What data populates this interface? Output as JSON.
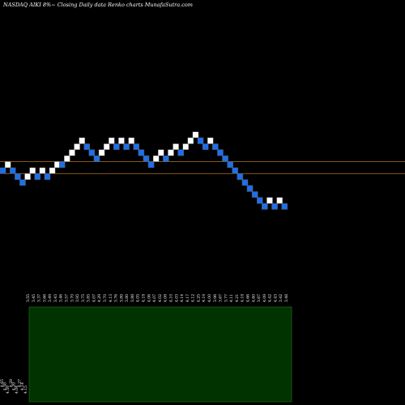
{
  "title": "NASDAQ AIKI 8%~  Closing Daily data  Renko  charts MunafaSutra.com",
  "colors": {
    "background": "#000000",
    "up_brick": "#ffffff",
    "down_brick": "#1e6fe8",
    "brick_border": "#5a5a5a",
    "reference_line": "#b8761e",
    "volume_panel": "#003300",
    "volume_border": "#1a7a1a",
    "label_text": "#ffffff"
  },
  "chart_data": [
    {
      "type": "renko",
      "name": "price",
      "brick_size_pct": 8,
      "y_range": [
        3.15,
        7.5
      ],
      "reference_lines": [
        5.62,
        5.07
      ],
      "bricks": [
        {
          "dir": "down",
          "low": 5.07,
          "high": 5.34
        },
        {
          "dir": "up",
          "low": 5.34,
          "high": 5.62
        },
        {
          "dir": "down",
          "low": 5.07,
          "high": 5.34
        },
        {
          "dir": "down",
          "low": 4.79,
          "high": 5.07
        },
        {
          "dir": "down",
          "low": 4.52,
          "high": 4.79
        },
        {
          "dir": "up",
          "low": 4.79,
          "high": 5.07
        },
        {
          "dir": "up",
          "low": 5.07,
          "high": 5.34
        },
        {
          "dir": "down",
          "low": 4.79,
          "high": 5.07
        },
        {
          "dir": "up",
          "low": 5.07,
          "high": 5.34
        },
        {
          "dir": "down",
          "low": 4.79,
          "high": 5.07
        },
        {
          "dir": "up",
          "low": 5.07,
          "high": 5.34
        },
        {
          "dir": "up",
          "low": 5.34,
          "high": 5.62
        },
        {
          "dir": "down",
          "low": 5.34,
          "high": 5.62
        },
        {
          "dir": "up",
          "low": 5.62,
          "high": 5.89
        },
        {
          "dir": "up",
          "low": 5.89,
          "high": 6.17
        },
        {
          "dir": "up",
          "low": 6.17,
          "high": 6.44
        },
        {
          "dir": "up",
          "low": 6.44,
          "high": 6.72
        },
        {
          "dir": "down",
          "low": 6.17,
          "high": 6.44
        },
        {
          "dir": "down",
          "low": 5.89,
          "high": 6.17
        },
        {
          "dir": "down",
          "low": 5.62,
          "high": 5.89
        },
        {
          "dir": "up",
          "low": 5.89,
          "high": 6.17
        },
        {
          "dir": "up",
          "low": 6.17,
          "high": 6.44
        },
        {
          "dir": "up",
          "low": 6.44,
          "high": 6.72
        },
        {
          "dir": "down",
          "low": 6.17,
          "high": 6.44
        },
        {
          "dir": "up",
          "low": 6.44,
          "high": 6.72
        },
        {
          "dir": "down",
          "low": 6.17,
          "high": 6.44
        },
        {
          "dir": "up",
          "low": 6.44,
          "high": 6.72
        },
        {
          "dir": "down",
          "low": 6.17,
          "high": 6.44
        },
        {
          "dir": "down",
          "low": 5.89,
          "high": 6.17
        },
        {
          "dir": "down",
          "low": 5.62,
          "high": 5.89
        },
        {
          "dir": "down",
          "low": 5.34,
          "high": 5.62
        },
        {
          "dir": "up",
          "low": 5.62,
          "high": 5.89
        },
        {
          "dir": "up",
          "low": 5.89,
          "high": 6.17
        },
        {
          "dir": "down",
          "low": 5.62,
          "high": 5.89
        },
        {
          "dir": "up",
          "low": 5.89,
          "high": 6.17
        },
        {
          "dir": "up",
          "low": 6.17,
          "high": 6.44
        },
        {
          "dir": "down",
          "low": 5.89,
          "high": 6.17
        },
        {
          "dir": "up",
          "low": 6.17,
          "high": 6.44
        },
        {
          "dir": "up",
          "low": 6.44,
          "high": 6.72
        },
        {
          "dir": "up",
          "low": 6.72,
          "high": 6.99
        },
        {
          "dir": "down",
          "low": 6.44,
          "high": 6.72
        },
        {
          "dir": "down",
          "low": 6.17,
          "high": 6.44
        },
        {
          "dir": "up",
          "low": 6.44,
          "high": 6.72
        },
        {
          "dir": "down",
          "low": 6.17,
          "high": 6.44
        },
        {
          "dir": "down",
          "low": 5.89,
          "high": 6.17
        },
        {
          "dir": "down",
          "low": 5.62,
          "high": 5.89
        },
        {
          "dir": "down",
          "low": 5.34,
          "high": 5.62
        },
        {
          "dir": "down",
          "low": 5.07,
          "high": 5.34
        },
        {
          "dir": "down",
          "low": 4.79,
          "high": 5.07
        },
        {
          "dir": "down",
          "low": 4.52,
          "high": 4.79
        },
        {
          "dir": "down",
          "low": 4.24,
          "high": 4.52
        },
        {
          "dir": "down",
          "low": 3.97,
          "high": 4.24
        },
        {
          "dir": "down",
          "low": 3.69,
          "high": 3.97
        },
        {
          "dir": "down",
          "low": 3.42,
          "high": 3.69
        },
        {
          "dir": "up",
          "low": 3.69,
          "high": 3.97
        },
        {
          "dir": "down",
          "low": 3.42,
          "high": 3.69
        },
        {
          "dir": "up",
          "low": 3.69,
          "high": 3.97
        },
        {
          "dir": "down",
          "low": 3.42,
          "high": 3.69
        }
      ],
      "date_labels": [
        "3.55",
        "3.45",
        "3.37",
        "3.66",
        "3.49",
        "3.43",
        "3.46",
        "3.57",
        "3.70",
        "3.95",
        "3.75",
        "3.85",
        "4.07",
        "4.29",
        "3.70",
        "4.13",
        "3.76",
        "3.89",
        "3.80",
        "3.88",
        "4.05",
        "4.18",
        "4.06",
        "4.07",
        "4.02",
        "4.08",
        "4.10",
        "4.03",
        "4.14",
        "4.17",
        "4.12",
        "4.25",
        "4.19",
        "4.00",
        "3.96",
        "3.67",
        "3.77",
        "4.11",
        "4.21",
        "4.18",
        "4.66",
        "4.60",
        "3.67",
        "4.09",
        "4.42",
        "4.43",
        "3.42",
        "3.48"
      ]
    },
    {
      "type": "volume",
      "name": "volume",
      "values": [
        0.0,
        0.0
      ],
      "side_labels": [
        "4.65",
        "4.58",
        "4.59",
        "4.28",
        "4.29",
        "4.04",
        "4.27",
        "4.14",
        "4.15"
      ]
    }
  ]
}
